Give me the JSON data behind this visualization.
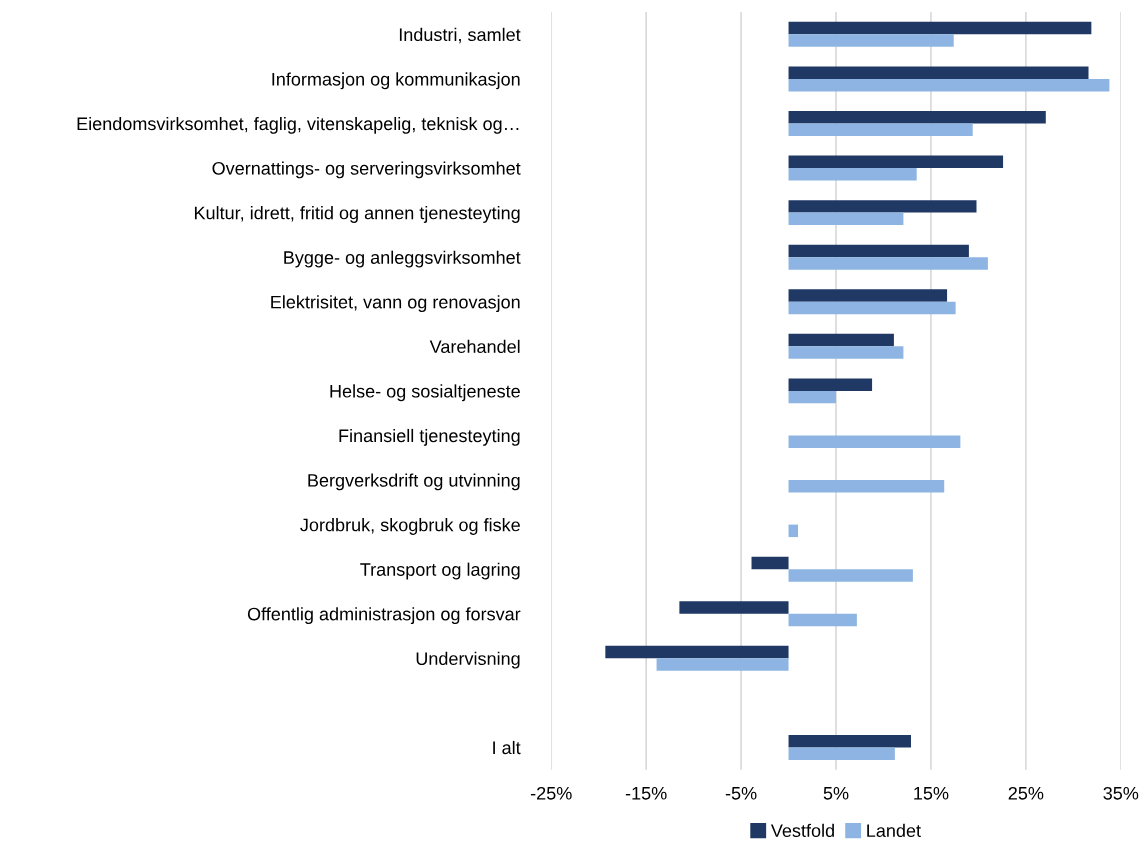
{
  "chart_data": {
    "type": "bar",
    "orientation": "horizontal",
    "categories": [
      "Industri, samlet",
      "Informasjon og kommunikasjon",
      "Eiendomsvirksomhet, faglig, vitenskapelig, teknisk og…",
      "Overnattings- og serveringsvirksomhet",
      "Kultur, idrett, fritid og annen tjenesteyting",
      "Bygge- og anleggsvirksomhet",
      "Elektrisitet, vann og renovasjon",
      "Varehandel",
      "Helse- og sosialtjeneste",
      "Finansiell tjenesteyting",
      "Bergverksdrift og utvinning",
      "Jordbruk, skogbruk og fiske",
      "Transport og lagring",
      "Offentlig administrasjon og forsvar",
      "Undervisning",
      null,
      "I alt"
    ],
    "series": [
      {
        "name": "Vestfold",
        "color": "#1f3864",
        "values": [
          31.9,
          31.6,
          27.1,
          22.6,
          19.8,
          19.0,
          16.7,
          11.1,
          8.8,
          null,
          null,
          null,
          -3.9,
          -11.5,
          -19.3,
          null,
          12.9
        ]
      },
      {
        "name": "Landet",
        "color": "#8db4e2",
        "values": [
          17.4,
          33.8,
          19.4,
          13.5,
          12.1,
          21.0,
          17.6,
          12.1,
          5.0,
          18.1,
          16.4,
          1.0,
          13.1,
          7.2,
          -13.9,
          null,
          11.2
        ]
      }
    ],
    "xlim": [
      -25,
      35
    ],
    "xticks": [
      {
        "value": -25,
        "label": "-25%"
      },
      {
        "value": -15,
        "label": "-15%"
      },
      {
        "value": -5,
        "label": "-5%"
      },
      {
        "value": 5,
        "label": "5%"
      },
      {
        "value": 15,
        "label": "15%"
      },
      {
        "value": 25,
        "label": "25%"
      },
      {
        "value": 35,
        "label": "35%"
      }
    ],
    "grid": "x",
    "legend": "bottom"
  }
}
